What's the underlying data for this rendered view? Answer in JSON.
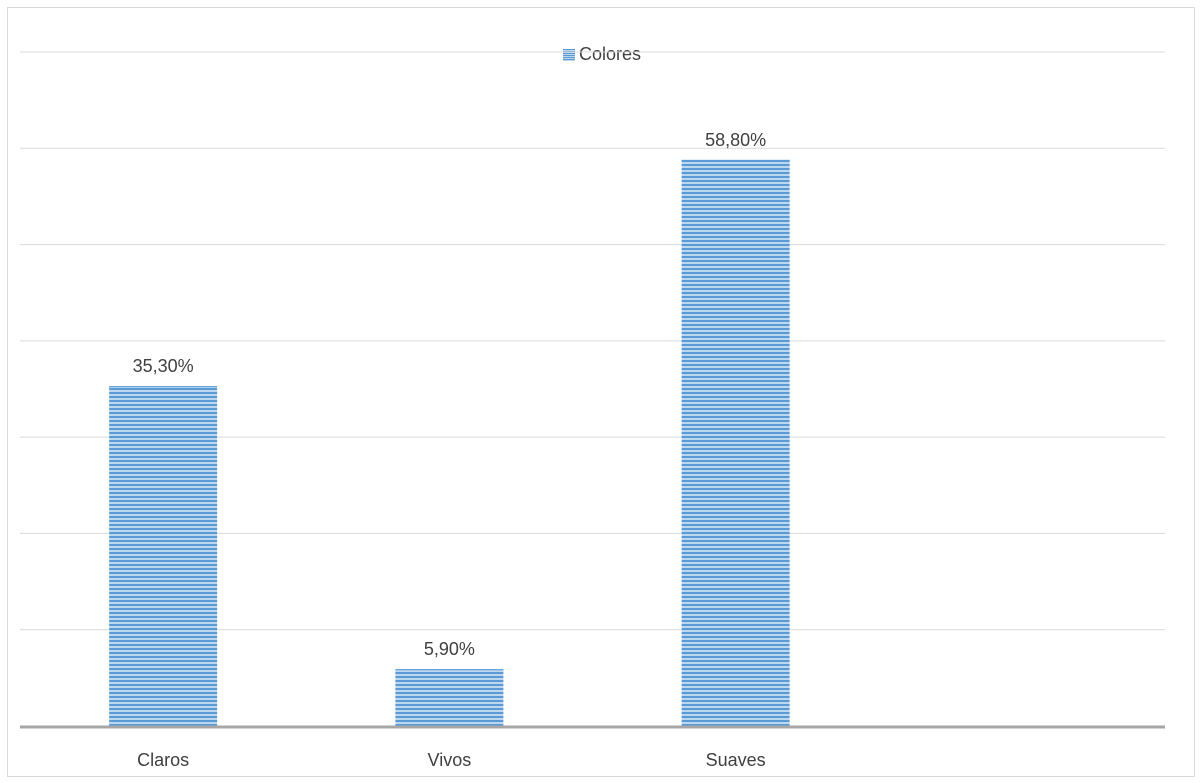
{
  "chart_data": {
    "type": "bar",
    "categories": [
      "Claros",
      "Vivos",
      "Suaves"
    ],
    "series": [
      {
        "name": "Colores",
        "values": [
          35.3,
          5.9,
          58.8
        ],
        "labels": [
          "35,30%",
          "5,90%",
          "58,80%"
        ]
      }
    ],
    "ylim": [
      0,
      70
    ],
    "grid": true,
    "legend_position": "top",
    "colors": {
      "bar": "#5b9bd5",
      "bar_stripe": "#bdd7ee",
      "grid": "#d9d9d9",
      "axis": "#a6a6a6",
      "text": "#404040"
    }
  }
}
